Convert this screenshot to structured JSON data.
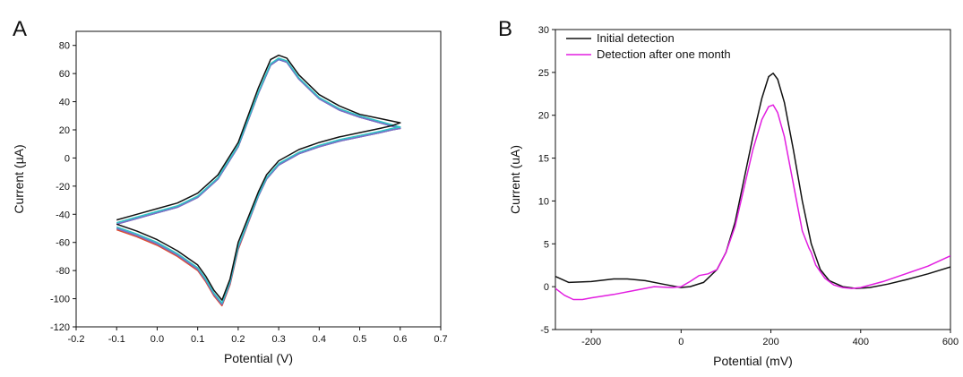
{
  "chart_data": [
    {
      "panel": "A",
      "type": "line",
      "xlabel": "Potential (V)",
      "ylabel": "Current (µA)",
      "xlim": [
        -0.2,
        0.7
      ],
      "ylim": [
        -120,
        90
      ],
      "xticks": [
        -0.2,
        -0.1,
        0.0,
        0.1,
        0.2,
        0.3,
        0.4,
        0.5,
        0.6,
        0.7
      ],
      "xtick_labels": [
        "-0.2",
        "-0.1",
        "0.0",
        "0.1",
        "0.2",
        "0.3",
        "0.4",
        "0.5",
        "0.6",
        "0.7"
      ],
      "yticks": [
        -120,
        -100,
        -80,
        -60,
        -40,
        -20,
        0,
        20,
        40,
        60,
        80
      ],
      "ytick_labels": [
        "-120",
        "-100",
        "-80",
        "-60",
        "-40",
        "-20",
        "0",
        "20",
        "40",
        "60",
        "80"
      ],
      "grid": false,
      "legend": null,
      "series": [
        {
          "color": "#e04a2c",
          "x": [
            -0.1,
            -0.05,
            0.0,
            0.05,
            0.1,
            0.15,
            0.2,
            0.25,
            0.28,
            0.3,
            0.32,
            0.35,
            0.4,
            0.45,
            0.5,
            0.55,
            0.6,
            0.58,
            0.55,
            0.5,
            0.45,
            0.4,
            0.35,
            0.3,
            0.27,
            0.25,
            0.2,
            0.18,
            0.16,
            0.14,
            0.12,
            0.1,
            0.05,
            0.0,
            -0.05,
            -0.1
          ],
          "y": [
            -47,
            -43,
            -39,
            -35,
            -28,
            -15,
            8,
            46,
            66,
            70,
            68,
            56,
            42,
            34,
            29,
            25,
            21,
            20,
            18,
            15,
            12,
            8,
            3,
            -5,
            -15,
            -27,
            -65,
            -90,
            -105,
            -98,
            -88,
            -80,
            -70,
            -62,
            -56,
            -51
          ]
        },
        {
          "color": "#2a6fdb",
          "x": [
            -0.1,
            -0.05,
            0.0,
            0.05,
            0.1,
            0.15,
            0.2,
            0.25,
            0.28,
            0.3,
            0.32,
            0.35,
            0.4,
            0.45,
            0.5,
            0.55,
            0.6,
            0.58,
            0.55,
            0.5,
            0.45,
            0.4,
            0.35,
            0.3,
            0.27,
            0.25,
            0.2,
            0.18,
            0.16,
            0.14,
            0.12,
            0.1,
            0.05,
            0.0,
            -0.05,
            -0.1
          ],
          "y": [
            -47,
            -43,
            -39,
            -35,
            -28,
            -15,
            8,
            46,
            66,
            70,
            68,
            56,
            42,
            34,
            29,
            25,
            21,
            20,
            18,
            15,
            12,
            8,
            3,
            -5,
            -15,
            -27,
            -64,
            -89,
            -104,
            -97,
            -87,
            -79,
            -69,
            -61,
            -55,
            -50
          ]
        },
        {
          "color": "#7b6ec6",
          "x": [
            -0.1,
            -0.05,
            0.0,
            0.05,
            0.1,
            0.15,
            0.2,
            0.25,
            0.28,
            0.3,
            0.32,
            0.35,
            0.4,
            0.45,
            0.5,
            0.55,
            0.6,
            0.58,
            0.55,
            0.5,
            0.45,
            0.4,
            0.35,
            0.3,
            0.27,
            0.25,
            0.2,
            0.18,
            0.16,
            0.14,
            0.12,
            0.1,
            0.05,
            0.0,
            -0.05,
            -0.1
          ],
          "y": [
            -47,
            -43,
            -39,
            -35,
            -28,
            -15,
            8,
            46,
            66,
            70.5,
            68,
            56,
            42,
            34,
            29,
            25,
            21,
            20,
            18,
            15,
            12,
            8,
            3,
            -5,
            -15,
            -27,
            -64,
            -89,
            -104,
            -97,
            -87,
            -79,
            -69,
            -61,
            -55,
            -50
          ]
        },
        {
          "color": "#2ec4c4",
          "x": [
            -0.1,
            -0.05,
            0.0,
            0.05,
            0.1,
            0.15,
            0.2,
            0.25,
            0.28,
            0.3,
            0.32,
            0.35,
            0.4,
            0.45,
            0.5,
            0.55,
            0.6,
            0.58,
            0.55,
            0.5,
            0.45,
            0.4,
            0.35,
            0.3,
            0.27,
            0.25,
            0.2,
            0.18,
            0.16,
            0.14,
            0.12,
            0.1,
            0.05,
            0.0,
            -0.05,
            -0.1
          ],
          "y": [
            -46,
            -42,
            -38,
            -34,
            -27,
            -14,
            9,
            47,
            67,
            71,
            69,
            57,
            43,
            35,
            30,
            26,
            22,
            21,
            19,
            16,
            13,
            9,
            4,
            -4,
            -14,
            -26,
            -63,
            -88,
            -103,
            -96,
            -86,
            -78,
            -68,
            -60,
            -54,
            -49
          ]
        },
        {
          "color": "#111111",
          "x": [
            -0.1,
            -0.05,
            0.0,
            0.05,
            0.1,
            0.15,
            0.2,
            0.25,
            0.28,
            0.3,
            0.32,
            0.35,
            0.4,
            0.45,
            0.5,
            0.55,
            0.6,
            0.58,
            0.55,
            0.5,
            0.45,
            0.4,
            0.35,
            0.3,
            0.27,
            0.25,
            0.2,
            0.18,
            0.16,
            0.14,
            0.12,
            0.1,
            0.05,
            0.0,
            -0.05,
            -0.1
          ],
          "y": [
            -44,
            -40,
            -36,
            -32,
            -25,
            -12,
            11,
            50,
            70,
            73,
            71,
            59,
            45,
            37,
            31,
            28,
            25,
            23,
            21,
            18,
            15,
            11,
            6,
            -2,
            -12,
            -24,
            -60,
            -86,
            -101,
            -94,
            -84,
            -76,
            -66,
            -58,
            -52,
            -47
          ]
        }
      ]
    },
    {
      "panel": "B",
      "type": "line",
      "xlabel": "Potential (mV)",
      "ylabel": "Current (uA)",
      "xlim": [
        -280,
        600
      ],
      "ylim": [
        -5,
        30
      ],
      "xticks": [
        -200,
        0,
        200,
        400,
        600
      ],
      "xtick_labels": [
        "-200",
        "0",
        "200",
        "400",
        "600"
      ],
      "yticks": [
        -5,
        0,
        5,
        10,
        15,
        20,
        25,
        30
      ],
      "ytick_labels": [
        "-5",
        "0",
        "5",
        "10",
        "15",
        "20",
        "25",
        "30"
      ],
      "grid": false,
      "legend": "top-left",
      "series": [
        {
          "name": "Initial detection",
          "color": "#111111",
          "x": [
            -280,
            -250,
            -200,
            -150,
            -120,
            -80,
            -40,
            -20,
            0,
            20,
            50,
            80,
            100,
            120,
            140,
            160,
            180,
            195,
            205,
            215,
            230,
            250,
            270,
            290,
            310,
            330,
            360,
            390,
            420,
            460,
            500,
            550,
            600
          ],
          "y": [
            1.2,
            0.5,
            0.6,
            0.9,
            0.9,
            0.7,
            0.3,
            0.1,
            -0.1,
            0.0,
            0.5,
            2.0,
            4.0,
            7.5,
            12.5,
            17.5,
            22.0,
            24.5,
            24.9,
            24.2,
            21.5,
            16.0,
            10.0,
            5.0,
            2.0,
            0.7,
            0.0,
            -0.2,
            -0.1,
            0.3,
            0.8,
            1.5,
            2.3
          ]
        },
        {
          "name": "Detection after one month",
          "color": "#e21ee0",
          "x": [
            -280,
            -260,
            -240,
            -220,
            -200,
            -150,
            -100,
            -60,
            -20,
            0,
            20,
            40,
            60,
            80,
            100,
            120,
            140,
            160,
            180,
            195,
            205,
            215,
            230,
            250,
            270,
            285,
            290,
            300,
            320,
            340,
            360,
            380,
            400,
            450,
            500,
            550,
            600
          ],
          "y": [
            -0.2,
            -1.0,
            -1.5,
            -1.5,
            -1.3,
            -0.9,
            -0.4,
            0.0,
            -0.1,
            0.0,
            0.6,
            1.3,
            1.5,
            2.0,
            4.0,
            7.0,
            11.5,
            16.0,
            19.5,
            21.0,
            21.2,
            20.3,
            17.5,
            12.0,
            6.5,
            4.5,
            4.0,
            2.5,
            1.0,
            0.2,
            -0.1,
            -0.2,
            -0.1,
            0.6,
            1.5,
            2.4,
            3.6
          ]
        }
      ]
    }
  ],
  "panels": {
    "a": {
      "label": "A"
    },
    "b": {
      "label": "B"
    }
  }
}
